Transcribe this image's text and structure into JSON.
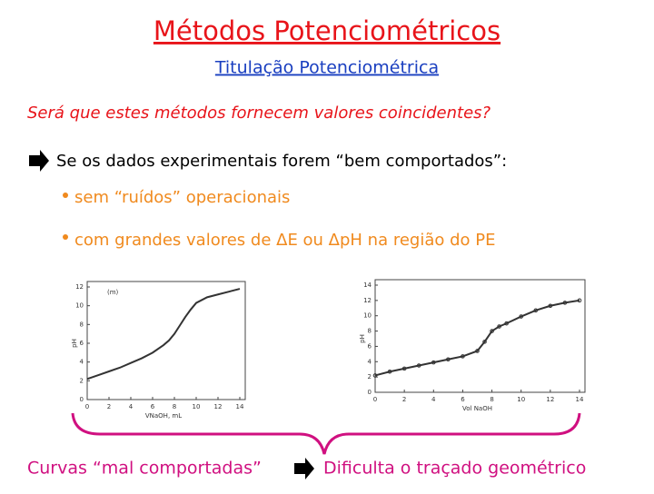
{
  "header": {
    "title": "Métodos Potenciométricos",
    "subtitle": "Titulação Potenciométrica"
  },
  "question": "Será que estes métodos fornecem valores coincidentes?",
  "statement": "Se os dados experimentais forem “bem comportados”:",
  "bullets": [
    "sem “ruídos” operacionais",
    "com grandes valores de ΔE ou ΔpH na região do PE"
  ],
  "plots": [
    {
      "label": "(m)",
      "ylabel": "pH",
      "xlabel": "VNaOH, mL",
      "xlim": [
        0,
        14
      ],
      "ylim": [
        0,
        12
      ],
      "xticks": [
        0,
        2,
        4,
        6,
        8,
        10,
        12,
        14
      ],
      "yticks": [
        0,
        2,
        4,
        6,
        8,
        10,
        12
      ],
      "x": [
        0,
        1,
        2,
        3,
        4,
        5,
        6,
        7,
        7.5,
        8,
        8.5,
        9,
        9.5,
        10,
        11,
        12,
        13,
        14
      ],
      "y": [
        2.2,
        2.6,
        3,
        3.4,
        3.9,
        4.4,
        5,
        5.8,
        6.3,
        7,
        7.9,
        8.8,
        9.6,
        10.3,
        10.9,
        11.2,
        11.5,
        11.8
      ]
    },
    {
      "ylabel": "pH",
      "xlabel": "Vol NaOH",
      "xlim": [
        0,
        14
      ],
      "ylim": [
        0,
        14
      ],
      "xticks": [
        0,
        2,
        4,
        6,
        8,
        10,
        12,
        14
      ],
      "yticks": [
        0,
        2,
        4,
        6,
        8,
        10,
        12,
        14
      ],
      "x": [
        0,
        1,
        2,
        3,
        4,
        5,
        6,
        7,
        7.5,
        8,
        8.5,
        9,
        10,
        11,
        12,
        13,
        14
      ],
      "y": [
        2.2,
        2.7,
        3.1,
        3.5,
        3.9,
        4.3,
        4.7,
        5.4,
        6.6,
        8,
        8.6,
        9,
        9.9,
        10.7,
        11.3,
        11.7,
        12
      ]
    }
  ],
  "conclusion": {
    "left": "Curvas “mal comportadas”",
    "right": "Dificulta o traçado geométrico"
  }
}
